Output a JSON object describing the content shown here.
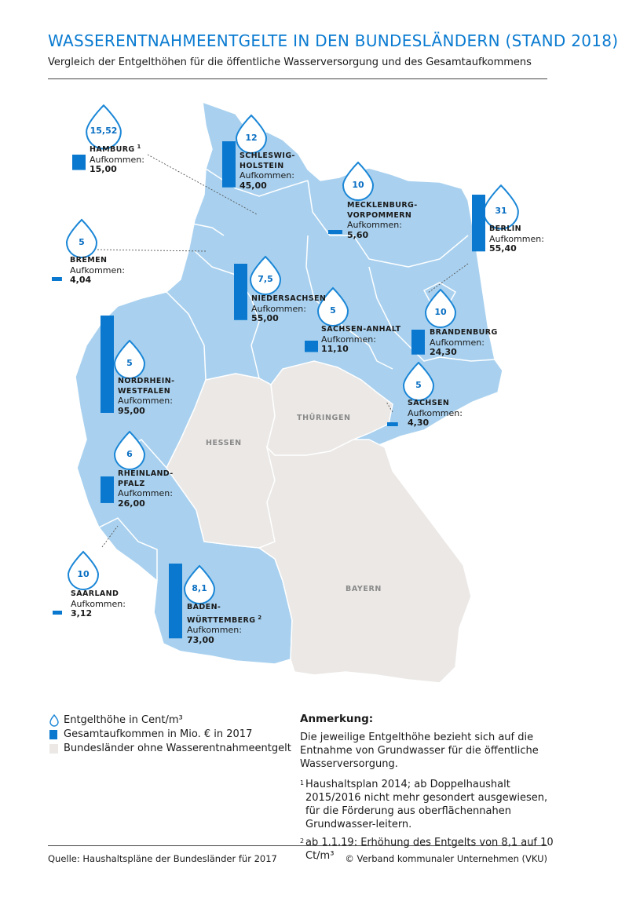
{
  "header": {
    "title": "WASSERENTNAHMEENTGELTE IN DEN BUNDESLÄNDERN (STAND 2018)",
    "subtitle": "Vergleich der Entgelthöhen für die öffentliche Wasserversorgung und des Gesamtaufkommens"
  },
  "colors": {
    "accent": "#0a7bd1",
    "state_fill": "#a9d1ef",
    "no_fee_fill": "#ebe8e6",
    "bar": "#0a78cf"
  },
  "states": [
    {
      "id": "hamburg",
      "name": "HAMBURG",
      "footnote": "1",
      "fee": "15,52",
      "aufkommen_label": "Aufkommen:",
      "aufkommen": "15,00",
      "aufkommen_value": 15.0
    },
    {
      "id": "schleswig-holstein",
      "name": "SCHLESWIG-|HOLSTEIN",
      "fee": "12",
      "aufkommen_label": "Aufkommen:",
      "aufkommen": "45,00",
      "aufkommen_value": 45.0
    },
    {
      "id": "mecklenburg-vorpommern",
      "name": "MECKLENBURG-|VORPOMMERN",
      "fee": "10",
      "aufkommen_label": "Aufkommen:",
      "aufkommen": "5,60",
      "aufkommen_value": 5.6
    },
    {
      "id": "berlin",
      "name": "BERLIN",
      "fee": "31",
      "aufkommen_label": "Aufkommen:",
      "aufkommen": "55,40",
      "aufkommen_value": 55.4
    },
    {
      "id": "bremen",
      "name": "BREMEN",
      "fee": "5",
      "aufkommen_label": "Aufkommen:",
      "aufkommen": "4,04",
      "aufkommen_value": 4.04
    },
    {
      "id": "niedersachsen",
      "name": "NIEDERSACHSEN",
      "fee": "7,5",
      "aufkommen_label": "Aufkommen:",
      "aufkommen": "55,00",
      "aufkommen_value": 55.0
    },
    {
      "id": "sachsen-anhalt",
      "name": "SACHSEN-ANHALT",
      "fee": "5",
      "aufkommen_label": "Aufkommen:",
      "aufkommen": "11,10",
      "aufkommen_value": 11.1
    },
    {
      "id": "brandenburg",
      "name": "BRANDENBURG",
      "fee": "10",
      "aufkommen_label": "Aufkommen:",
      "aufkommen": "24,30",
      "aufkommen_value": 24.3
    },
    {
      "id": "nordrhein-westfalen",
      "name": "NORDRHEIN-|WESTFALEN",
      "fee": "5",
      "aufkommen_label": "Aufkommen:",
      "aufkommen": "95,00",
      "aufkommen_value": 95.0
    },
    {
      "id": "sachsen",
      "name": "SACHSEN",
      "fee": "5",
      "aufkommen_label": "Aufkommen:",
      "aufkommen": "4,30",
      "aufkommen_value": 4.3
    },
    {
      "id": "rheinland-pfalz",
      "name": "RHEINLAND-|PFALZ",
      "fee": "6",
      "aufkommen_label": "Aufkommen:",
      "aufkommen": "26,00",
      "aufkommen_value": 26.0
    },
    {
      "id": "saarland",
      "name": "SAARLAND",
      "fee": "10",
      "aufkommen_label": "Aufkommen:",
      "aufkommen": "3,12",
      "aufkommen_value": 3.12
    },
    {
      "id": "baden-wuerttemberg",
      "name": "BADEN-|WÜRTTEMBERG",
      "footnote": "2",
      "fee": "8,1",
      "aufkommen_label": "Aufkommen:",
      "aufkommen": "73,00",
      "aufkommen_value": 73.0
    }
  ],
  "no_fee_states": [
    "HESSEN",
    "THÜRINGEN",
    "BAYERN"
  ],
  "legend": {
    "fee": "Entgelthöhe in Cent/m³",
    "total": "Gesamtaufkommen in Mio. € in 2017",
    "none": "Bundesländer ohne Wasserentnahmeentgelt"
  },
  "note": {
    "heading": "Anmerkung:",
    "text": "Die jeweilige Entgelthöhe bezieht sich auf die Entnahme von Grundwasser für die öffentliche Wasserversorgung.",
    "footnotes": [
      {
        "mark": "1",
        "text": "Haushaltsplan 2014; ab Doppelhaushalt 2015/2016 nicht mehr gesondert ausgewiesen, für die Förderung aus oberflächennahen Grundwasser-leitern."
      },
      {
        "mark": "2",
        "text": "ab 1.1.19: Erhöhung des Entgelts von 8,1 auf 10 Ct/m³"
      }
    ]
  },
  "footer": {
    "source": "Quelle: Haushaltspläne der Bundesländer für 2017",
    "copyright": "© Verband kommunaler Unternehmen (VKU)"
  }
}
